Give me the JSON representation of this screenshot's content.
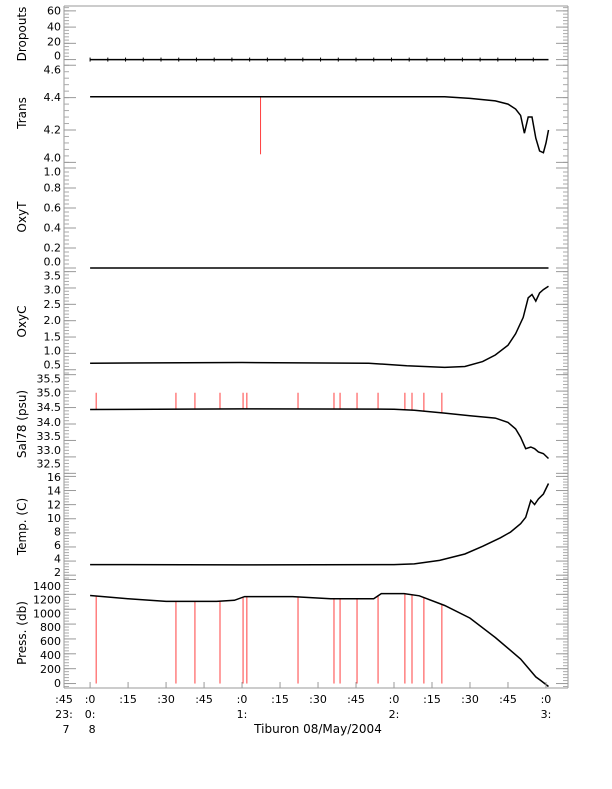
{
  "chart_data": {
    "type": "line",
    "title": "",
    "xlabel": "Tiburon 08/May/2004",
    "x_units": "minutes after 08/May/2004 00:00",
    "xlim": [
      -10.3,
      188.7
    ],
    "x_ticks": [
      {
        "x": -10.3,
        "l1": ":45",
        "l2": "23:",
        "l3": "7"
      },
      {
        "x": 0,
        "l1": ":0",
        "l2": "0:",
        "l3": "8"
      },
      {
        "x": 15,
        "l1": ":15",
        "l2": "",
        "l3": ""
      },
      {
        "x": 30,
        "l1": ":30",
        "l2": "",
        "l3": ""
      },
      {
        "x": 45,
        "l1": ":45",
        "l2": "",
        "l3": ""
      },
      {
        "x": 60,
        "l1": ":0",
        "l2": "1:",
        "l3": ""
      },
      {
        "x": 75,
        "l1": ":15",
        "l2": "",
        "l3": ""
      },
      {
        "x": 90,
        "l1": ":30",
        "l2": "",
        "l3": ""
      },
      {
        "x": 105,
        "l1": ":45",
        "l2": "",
        "l3": ""
      },
      {
        "x": 120,
        "l1": ":0",
        "l2": "2:",
        "l3": ""
      },
      {
        "x": 135,
        "l1": ":15",
        "l2": "",
        "l3": ""
      },
      {
        "x": 150,
        "l1": ":30",
        "l2": "",
        "l3": ""
      },
      {
        "x": 165,
        "l1": ":45",
        "l2": "",
        "l3": ""
      },
      {
        "x": 180,
        "l1": ":0",
        "l2": "3:",
        "l3": ""
      }
    ],
    "colors": {
      "line": "#000000",
      "spike": "#ff4040"
    },
    "panels": [
      {
        "ylabel": "Dropouts",
        "ylim": [
          -3,
          66
        ],
        "ticks": [
          "0",
          "20",
          "40",
          "60"
        ],
        "tick_values": [
          0,
          20,
          40,
          60
        ],
        "series": [
          [
            0,
            0
          ],
          [
            181,
            0
          ]
        ],
        "spikes": [],
        "spike_to": 0
      },
      {
        "ylabel": "Trans",
        "ylim": [
          3.99,
          4.62
        ],
        "ticks": [
          "4.0",
          "4.2",
          "4.4",
          "4.6"
        ],
        "tick_values": [
          4.0,
          4.2,
          4.4,
          4.6
        ],
        "series": [
          [
            0,
            4.405
          ],
          [
            140,
            4.405
          ],
          [
            150,
            4.395
          ],
          [
            160,
            4.38
          ],
          [
            165,
            4.36
          ],
          [
            168,
            4.33
          ],
          [
            170,
            4.29
          ],
          [
            171.5,
            4.18
          ],
          [
            173,
            4.28
          ],
          [
            174.5,
            4.28
          ],
          [
            176,
            4.15
          ],
          [
            177.5,
            4.07
          ],
          [
            179,
            4.06
          ],
          [
            180,
            4.12
          ],
          [
            181,
            4.2
          ]
        ],
        "spikes": [
          67.3
        ],
        "spike_to": 4.05
      },
      {
        "ylabel": "OxyT",
        "ylim": [
          -0.02,
          1.04
        ],
        "ticks": [
          "0.0",
          "0.2",
          "0.4",
          "0.6",
          "0.8",
          "1.0"
        ],
        "tick_values": [
          0,
          0.2,
          0.4,
          0.6,
          0.8,
          1.0
        ],
        "series": [
          [
            0,
            0
          ],
          [
            181,
            0
          ]
        ],
        "spikes": [],
        "spike_to": 0
      },
      {
        "ylabel": "OxyC",
        "ylim": [
          0.4,
          3.55
        ],
        "ticks": [
          "0.5",
          "1.0",
          "1.5",
          "2.0",
          "2.5",
          "3.0",
          "3.5"
        ],
        "tick_values": [
          0.5,
          1,
          1.5,
          2,
          2.5,
          3,
          3.5
        ],
        "series": [
          [
            0,
            0.7
          ],
          [
            60,
            0.72
          ],
          [
            110,
            0.7
          ],
          [
            125,
            0.62
          ],
          [
            140,
            0.57
          ],
          [
            148,
            0.6
          ],
          [
            155,
            0.75
          ],
          [
            160,
            0.95
          ],
          [
            165,
            1.25
          ],
          [
            168,
            1.6
          ],
          [
            171,
            2.1
          ],
          [
            173,
            2.7
          ],
          [
            174.5,
            2.8
          ],
          [
            176,
            2.6
          ],
          [
            177.5,
            2.85
          ],
          [
            179,
            2.95
          ],
          [
            181,
            3.05
          ]
        ],
        "spikes": [],
        "spike_to": 0
      },
      {
        "ylabel": "Sal78 (psu)",
        "ylim": [
          32.45,
          35.55
        ],
        "ticks": [
          "32.5",
          "33.0",
          "33.5",
          "34.0",
          "34.5",
          "35.0",
          "35.5"
        ],
        "tick_values": [
          32.5,
          33,
          33.5,
          34,
          34.5,
          35,
          35.5
        ],
        "series": [
          [
            0,
            34.44
          ],
          [
            60,
            34.46
          ],
          [
            120,
            34.45
          ],
          [
            128,
            34.42
          ],
          [
            140,
            34.33
          ],
          [
            150,
            34.25
          ],
          [
            160,
            34.18
          ],
          [
            165,
            34.05
          ],
          [
            168,
            33.85
          ],
          [
            170,
            33.6
          ],
          [
            172,
            33.25
          ],
          [
            174,
            33.3
          ],
          [
            175.5,
            33.25
          ],
          [
            177,
            33.15
          ],
          [
            179,
            33.1
          ],
          [
            181,
            32.95
          ]
        ],
        "spikes": [
          2.4,
          33.9,
          41.4,
          51.3,
          60.4,
          61.9,
          82.1,
          96.3,
          98.7,
          105.4,
          113.7,
          124.3,
          127.1,
          131.8,
          138.9
        ],
        "spike_to": 34.95
      },
      {
        "ylabel": "Temp. (C)",
        "ylim": [
          1.6,
          16.2
        ],
        "ticks": [
          "2",
          "4",
          "6",
          "8",
          "10",
          "12",
          "14",
          "16"
        ],
        "tick_values": [
          2,
          4,
          6,
          8,
          10,
          12,
          14,
          16
        ],
        "series": [
          [
            0,
            3.5
          ],
          [
            60,
            3.45
          ],
          [
            120,
            3.5
          ],
          [
            128,
            3.6
          ],
          [
            138,
            4.1
          ],
          [
            148,
            5.0
          ],
          [
            155,
            6.1
          ],
          [
            162,
            7.3
          ],
          [
            166,
            8.1
          ],
          [
            170,
            9.3
          ],
          [
            172,
            10.2
          ],
          [
            174,
            12.6
          ],
          [
            175.5,
            12.0
          ],
          [
            177,
            12.8
          ],
          [
            179,
            13.5
          ],
          [
            181,
            15.0
          ]
        ],
        "spikes": [],
        "spike_to": 0
      },
      {
        "ylabel": "Press. (db)",
        "ylim": [
          -60,
          1420
        ],
        "ticks": [
          "0",
          "200",
          "400",
          "600",
          "800",
          "1000",
          "1200",
          "1400"
        ],
        "tick_values": [
          0,
          200,
          400,
          600,
          800,
          1000,
          1200,
          1400
        ],
        "series": [
          [
            0,
            1185
          ],
          [
            15,
            1140
          ],
          [
            30,
            1105
          ],
          [
            50,
            1105
          ],
          [
            57,
            1120
          ],
          [
            61,
            1170
          ],
          [
            80,
            1170
          ],
          [
            95,
            1140
          ],
          [
            112,
            1140
          ],
          [
            115,
            1210
          ],
          [
            124,
            1210
          ],
          [
            130,
            1180
          ],
          [
            140,
            1050
          ],
          [
            150,
            880
          ],
          [
            160,
            620
          ],
          [
            170,
            330
          ],
          [
            176,
            90
          ],
          [
            178,
            40
          ],
          [
            181,
            -40
          ]
        ],
        "spikes": [
          2.4,
          33.9,
          41.4,
          51.3,
          60.4,
          61.9,
          82.1,
          96.3,
          98.7,
          105.4,
          113.7,
          124.3,
          127.1,
          131.8,
          138.9
        ],
        "spike_to": 0
      }
    ]
  }
}
